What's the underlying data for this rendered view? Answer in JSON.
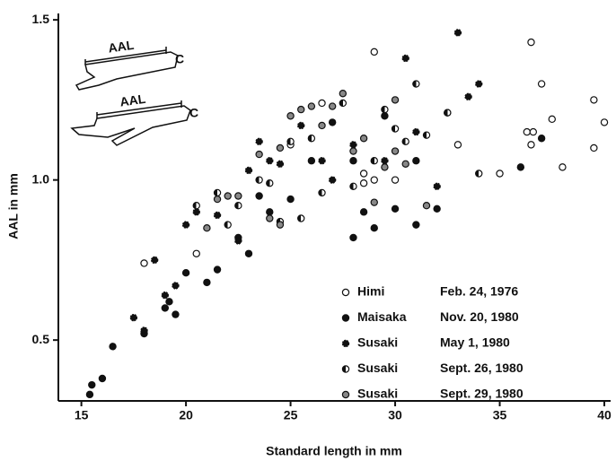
{
  "chart_data": {
    "type": "scatter",
    "x_label": "Standard length in mm",
    "y_label": "AAL in mm",
    "xlim": [
      13.9,
      40.3
    ],
    "ylim": [
      0.31,
      1.52
    ],
    "xticks": [
      15,
      20,
      25,
      30,
      35,
      40
    ],
    "yticks": [
      0.5,
      {
        "value": 1,
        "label": "1.0"
      },
      1.5
    ],
    "annotations": [
      "AAL",
      "C",
      "AAL",
      "C"
    ],
    "series": [
      {
        "name": "Himi",
        "date": "Feb. 24, 1976",
        "marker": "open",
        "color": "#111111",
        "x": [
          29,
          36.5,
          37,
          39.5,
          40,
          37.5,
          36.3,
          36.6,
          36.5,
          38,
          39.5,
          35,
          26.5,
          25,
          29,
          28.5,
          28.5,
          30,
          18,
          20.5,
          33,
          32.5
        ],
        "values": [
          1.4,
          1.43,
          1.3,
          1.25,
          1.18,
          1.19,
          1.15,
          1.15,
          1.11,
          1.04,
          1.1,
          1.02,
          1.24,
          1.11,
          1.0,
          0.99,
          1.02,
          1.0,
          0.74,
          0.77,
          1.11,
          1.21
        ]
      },
      {
        "name": "Maisaka",
        "date": "Nov. 20, 1980",
        "marker": "filled",
        "color": "#111111",
        "x": [
          15.4,
          15.5,
          16,
          16.5,
          18,
          19,
          19.2,
          19.5,
          20,
          21,
          21.5,
          22.5,
          23,
          23.5,
          24,
          25,
          26,
          27,
          28,
          28.5,
          29,
          30,
          31,
          32,
          31,
          28,
          36,
          37,
          29.5
        ],
        "values": [
          0.33,
          0.36,
          0.38,
          0.48,
          0.52,
          0.6,
          0.62,
          0.58,
          0.71,
          0.68,
          0.72,
          0.82,
          0.77,
          0.95,
          0.9,
          0.94,
          1.06,
          1.18,
          0.82,
          0.9,
          0.85,
          0.91,
          0.86,
          0.91,
          1.06,
          1.06,
          1.04,
          1.13,
          1.2
        ]
      },
      {
        "name": "Susaki",
        "date": "May 1, 1980",
        "marker": "dot",
        "color": "#111111",
        "x": [
          17.5,
          18,
          18.5,
          19,
          19.5,
          20,
          20.5,
          21.5,
          22.5,
          23,
          23.5,
          24,
          24.5,
          25.5,
          26.5,
          27,
          28,
          29.5,
          30.5,
          31,
          33,
          34,
          33.5,
          32
        ],
        "values": [
          0.57,
          0.53,
          0.75,
          0.64,
          0.67,
          0.86,
          0.9,
          0.89,
          0.81,
          1.03,
          1.12,
          1.06,
          1.05,
          1.17,
          1.06,
          1.0,
          1.11,
          1.06,
          1.38,
          1.15,
          1.46,
          1.3,
          1.26,
          0.98
        ]
      },
      {
        "name": "Susaki",
        "date": "Sept. 26, 1980",
        "marker": "half",
        "color": "#111111",
        "x": [
          20.5,
          21.5,
          22,
          22.5,
          23.5,
          24,
          24.5,
          25,
          25.5,
          26,
          26.5,
          27.5,
          28,
          29,
          29.5,
          30,
          30.5,
          31,
          31.5,
          32.5,
          34
        ],
        "values": [
          0.92,
          0.96,
          0.86,
          0.92,
          1.0,
          0.99,
          0.87,
          1.12,
          0.88,
          1.13,
          0.96,
          1.24,
          0.98,
          1.06,
          1.22,
          1.16,
          1.12,
          1.3,
          1.14,
          1.21,
          1.02
        ]
      },
      {
        "name": "Susaki",
        "date": "Sept. 29, 1980",
        "marker": "gray",
        "color": "#111111",
        "x": [
          21,
          21.5,
          22,
          22.5,
          23.5,
          24,
          24.5,
          25,
          25.5,
          26,
          26.5,
          27,
          27.5,
          28,
          28.5,
          29,
          29.5,
          30,
          30.5,
          31.5,
          24.5,
          30
        ],
        "values": [
          0.85,
          0.94,
          0.95,
          0.95,
          1.08,
          0.88,
          1.1,
          1.2,
          1.22,
          1.23,
          1.17,
          1.23,
          1.27,
          1.09,
          1.13,
          0.93,
          1.04,
          1.09,
          1.05,
          0.92,
          0.86,
          1.25
        ]
      }
    ]
  }
}
